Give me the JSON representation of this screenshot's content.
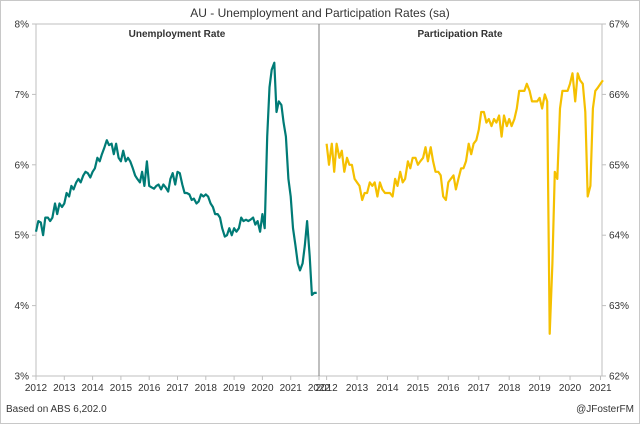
{
  "chart_data": {
    "type": "line",
    "title": "AU - Unemployment and Participation Rates (sa)",
    "source": "Based on ABS 6,202.0",
    "credit": "@JFosterFM",
    "left_axis": {
      "ylim": [
        3,
        8
      ],
      "ticks": [
        3,
        4,
        5,
        6,
        7,
        8
      ],
      "tick_labels": [
        "3%",
        "4%",
        "5%",
        "6%",
        "7%",
        "8%"
      ]
    },
    "right_axis": {
      "ylim": [
        62,
        67
      ],
      "ticks": [
        62,
        63,
        64,
        65,
        66,
        67
      ],
      "tick_labels": [
        "62%",
        "63%",
        "64%",
        "65%",
        "66%",
        "67%"
      ]
    },
    "panels": [
      {
        "name": "Unemployment Rate",
        "axis": "left",
        "color": "#007b76",
        "x_ticks": [
          2012,
          2013,
          2014,
          2015,
          2016,
          2017,
          2018,
          2019,
          2020,
          2021,
          2022
        ],
        "x_tick_labels": [
          "2012",
          "2013",
          "2014",
          "2015",
          "2016",
          "2017",
          "2018",
          "2019",
          "2020",
          "2021",
          "2022"
        ],
        "xlim": [
          2012,
          2022
        ],
        "x": [
          2012.0,
          2012.08,
          2012.17,
          2012.25,
          2012.33,
          2012.42,
          2012.5,
          2012.58,
          2012.67,
          2012.75,
          2012.83,
          2012.92,
          2013.0,
          2013.08,
          2013.17,
          2013.25,
          2013.33,
          2013.42,
          2013.5,
          2013.58,
          2013.67,
          2013.75,
          2013.83,
          2013.92,
          2014.0,
          2014.08,
          2014.17,
          2014.25,
          2014.33,
          2014.42,
          2014.5,
          2014.58,
          2014.67,
          2014.75,
          2014.83,
          2014.92,
          2015.0,
          2015.08,
          2015.17,
          2015.25,
          2015.33,
          2015.42,
          2015.5,
          2015.58,
          2015.67,
          2015.75,
          2015.83,
          2015.92,
          2016.0,
          2016.08,
          2016.17,
          2016.25,
          2016.33,
          2016.42,
          2016.5,
          2016.58,
          2016.67,
          2016.75,
          2016.83,
          2016.92,
          2017.0,
          2017.08,
          2017.17,
          2017.25,
          2017.33,
          2017.42,
          2017.5,
          2017.58,
          2017.67,
          2017.75,
          2017.83,
          2017.92,
          2018.0,
          2018.08,
          2018.17,
          2018.25,
          2018.33,
          2018.42,
          2018.5,
          2018.58,
          2018.67,
          2018.75,
          2018.83,
          2018.92,
          2019.0,
          2019.08,
          2019.17,
          2019.25,
          2019.33,
          2019.42,
          2019.5,
          2019.58,
          2019.67,
          2019.75,
          2019.83,
          2019.92,
          2020.0,
          2020.08,
          2020.17,
          2020.25,
          2020.33,
          2020.42,
          2020.5,
          2020.58,
          2020.67,
          2020.75,
          2020.83,
          2020.92,
          2021.0,
          2021.08,
          2021.17,
          2021.25,
          2021.33,
          2021.42,
          2021.5,
          2021.58,
          2021.67,
          2021.75,
          2021.83,
          2021.92
        ],
        "values": [
          5.05,
          5.2,
          5.18,
          5.0,
          5.25,
          5.25,
          5.2,
          5.25,
          5.45,
          5.3,
          5.45,
          5.4,
          5.45,
          5.6,
          5.55,
          5.7,
          5.65,
          5.75,
          5.8,
          5.75,
          5.85,
          5.9,
          5.88,
          5.82,
          5.9,
          5.95,
          6.1,
          6.05,
          6.15,
          6.25,
          6.35,
          6.28,
          6.3,
          6.15,
          6.3,
          6.1,
          6.05,
          6.2,
          6.05,
          6.1,
          6.05,
          5.95,
          5.85,
          5.8,
          5.75,
          5.9,
          5.7,
          6.05,
          5.7,
          5.68,
          5.66,
          5.7,
          5.72,
          5.65,
          5.72,
          5.68,
          5.62,
          5.8,
          5.88,
          5.72,
          5.9,
          5.88,
          5.72,
          5.6,
          5.6,
          5.58,
          5.5,
          5.52,
          5.45,
          5.48,
          5.58,
          5.55,
          5.58,
          5.55,
          5.45,
          5.4,
          5.3,
          5.3,
          5.25,
          5.1,
          4.98,
          5.0,
          5.1,
          5.0,
          5.1,
          5.05,
          5.1,
          5.25,
          5.2,
          5.22,
          5.2,
          5.22,
          5.25,
          5.15,
          5.2,
          5.05,
          5.3,
          5.1,
          6.4,
          7.1,
          7.35,
          7.45,
          6.75,
          6.9,
          6.85,
          6.6,
          6.4,
          5.8,
          5.55,
          5.1,
          4.85,
          4.6,
          4.5,
          4.6,
          4.85,
          5.2,
          4.7,
          4.15,
          4.18,
          4.18
        ]
      },
      {
        "name": "Participation Rate",
        "axis": "right",
        "color": "#f5c000",
        "x_ticks": [
          2012,
          2013,
          2014,
          2015,
          2016,
          2017,
          2018,
          2019,
          2020,
          2021
        ],
        "x_tick_labels": [
          "2012",
          "2013",
          "2014",
          "2015",
          "2016",
          "2017",
          "2018",
          "2019",
          "2020",
          "2021"
        ],
        "xlim": [
          2011.75,
          2021.05
        ],
        "x": [
          2012.0,
          2012.08,
          2012.17,
          2012.25,
          2012.33,
          2012.42,
          2012.5,
          2012.58,
          2012.67,
          2012.75,
          2012.83,
          2012.92,
          2013.0,
          2013.08,
          2013.17,
          2013.25,
          2013.33,
          2013.42,
          2013.5,
          2013.58,
          2013.67,
          2013.75,
          2013.83,
          2013.92,
          2014.0,
          2014.08,
          2014.17,
          2014.25,
          2014.33,
          2014.42,
          2014.5,
          2014.58,
          2014.67,
          2014.75,
          2014.83,
          2014.92,
          2015.0,
          2015.08,
          2015.17,
          2015.25,
          2015.33,
          2015.42,
          2015.5,
          2015.58,
          2015.67,
          2015.75,
          2015.83,
          2015.92,
          2016.0,
          2016.08,
          2016.17,
          2016.25,
          2016.33,
          2016.42,
          2016.5,
          2016.58,
          2016.67,
          2016.75,
          2016.83,
          2016.92,
          2017.0,
          2017.08,
          2017.17,
          2017.25,
          2017.33,
          2017.42,
          2017.5,
          2017.58,
          2017.67,
          2017.75,
          2017.83,
          2017.92,
          2018.0,
          2018.08,
          2018.17,
          2018.25,
          2018.33,
          2018.42,
          2018.5,
          2018.58,
          2018.67,
          2018.75,
          2018.83,
          2018.92,
          2019.0,
          2019.08,
          2019.17,
          2019.25,
          2019.33,
          2019.42,
          2019.5,
          2019.58,
          2019.67,
          2019.75,
          2019.83,
          2019.92,
          2020.0,
          2020.08,
          2020.17,
          2020.25,
          2020.33,
          2020.42,
          2020.5,
          2020.58,
          2020.67,
          2020.75,
          2020.83,
          2020.92,
          2021.0,
          2021.08
        ],
        "values": [
          65.3,
          65.0,
          65.3,
          64.9,
          65.3,
          65.1,
          65.2,
          64.9,
          65.1,
          65.0,
          65.0,
          64.8,
          64.75,
          64.7,
          64.5,
          64.6,
          64.6,
          64.75,
          64.7,
          64.75,
          64.55,
          64.75,
          64.65,
          64.6,
          64.6,
          64.6,
          64.55,
          64.8,
          64.7,
          64.9,
          64.75,
          64.8,
          65.05,
          64.95,
          65.1,
          65.1,
          65.0,
          65.05,
          65.1,
          65.25,
          65.05,
          65.25,
          65.05,
          64.9,
          64.9,
          64.85,
          64.55,
          64.5,
          64.75,
          64.8,
          64.85,
          64.65,
          64.8,
          64.95,
          64.95,
          65.05,
          65.3,
          65.15,
          65.3,
          65.35,
          65.5,
          65.75,
          65.75,
          65.6,
          65.65,
          65.55,
          65.65,
          65.6,
          65.7,
          65.4,
          65.7,
          65.55,
          65.65,
          65.55,
          65.65,
          65.8,
          66.05,
          66.05,
          66.05,
          66.15,
          66.05,
          65.9,
          65.9,
          65.9,
          65.95,
          65.8,
          66.0,
          65.9,
          62.6,
          63.6,
          64.9,
          64.8,
          65.8,
          66.05,
          66.05,
          66.05,
          66.15,
          66.3,
          65.9,
          66.3,
          66.2,
          66.15,
          65.75,
          64.55,
          64.7,
          65.8,
          66.05,
          66.1,
          66.15,
          66.2
        ]
      }
    ]
  }
}
